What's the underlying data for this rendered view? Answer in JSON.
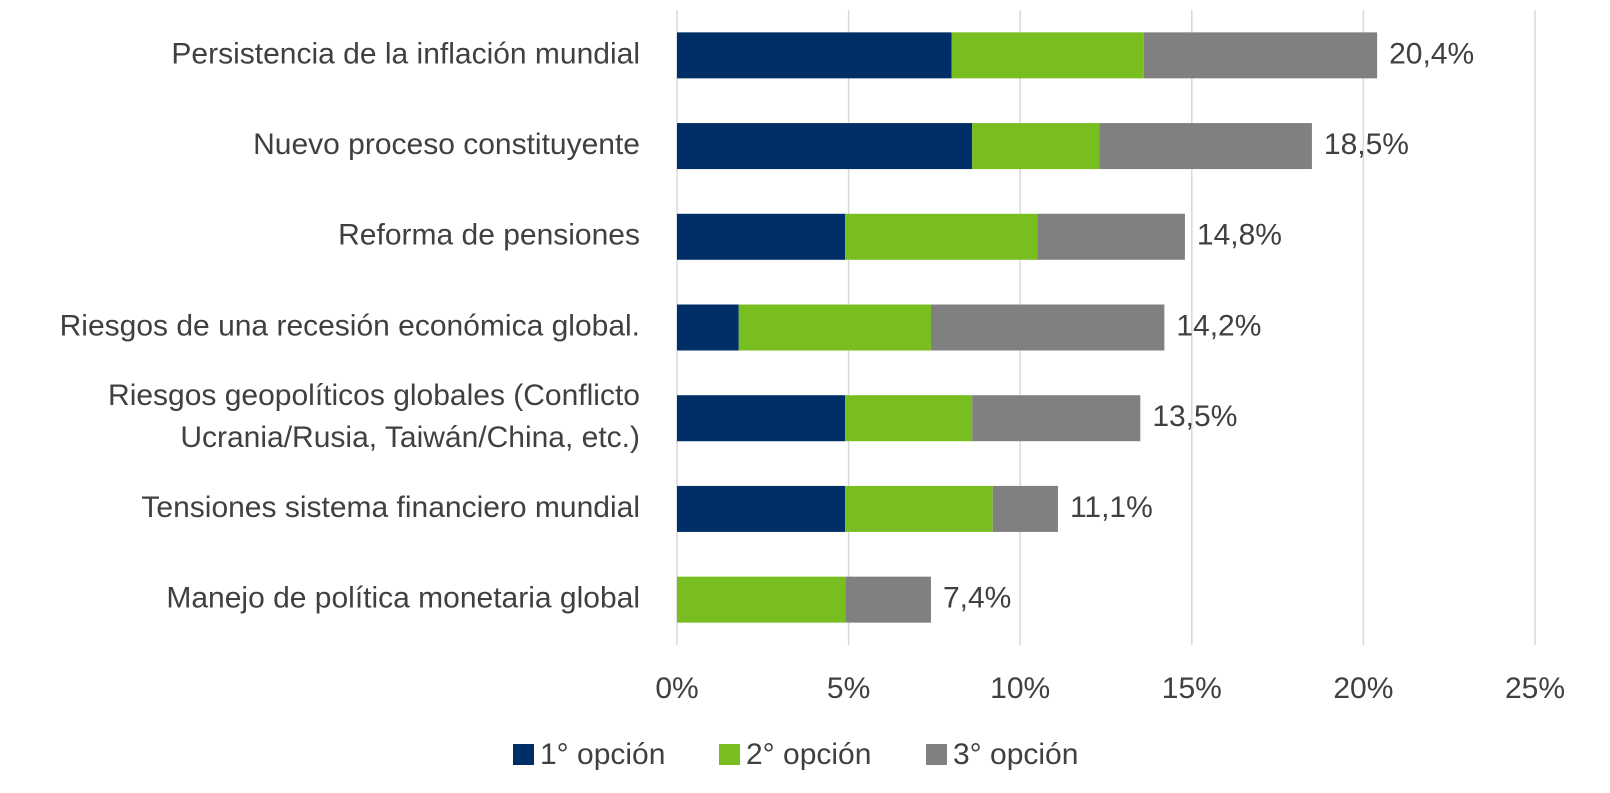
{
  "chart_data": {
    "type": "stacked-barh",
    "categories": [
      "Persistencia de la inflación mundial",
      "Nuevo proceso constituyente",
      "Reforma de pensiones",
      "Riesgos de una recesión económica global.",
      [
        "Riesgos geopolíticos globales (Conflicto",
        "Ucrania/Rusia, Taiwán/China, etc.)"
      ],
      "Tensiones sistema financiero mundial",
      "Manejo de política monetaria global"
    ],
    "series": [
      {
        "name": "1° opción",
        "color": "#002f67",
        "values": [
          8.0,
          8.6,
          4.9,
          1.8,
          4.9,
          4.9,
          0
        ]
      },
      {
        "name": "2° opción",
        "color": "#78be21",
        "values": [
          5.6,
          3.7,
          5.6,
          5.6,
          3.7,
          4.3,
          4.9
        ]
      },
      {
        "name": "3° opción",
        "color": "#808080",
        "values": [
          6.8,
          6.2,
          4.3,
          6.8,
          4.9,
          1.9,
          2.5
        ]
      }
    ],
    "totals": [
      20.4,
      18.5,
      14.8,
      14.2,
      13.5,
      11.1,
      7.4
    ],
    "total_labels": [
      "20,4%",
      "18,5%",
      "14,8%",
      "14,2%",
      "13,5%",
      "11,1%",
      "7,4%"
    ],
    "xlim": [
      0,
      25
    ],
    "xticks": [
      {
        "value": 0,
        "label": "0%"
      },
      {
        "value": 5,
        "label": "5%"
      },
      {
        "value": 10,
        "label": "10%"
      },
      {
        "value": 15,
        "label": "15%"
      },
      {
        "value": 20,
        "label": "20%"
      },
      {
        "value": 25,
        "label": "25%"
      }
    ],
    "grid": true,
    "legend": "bottom"
  }
}
